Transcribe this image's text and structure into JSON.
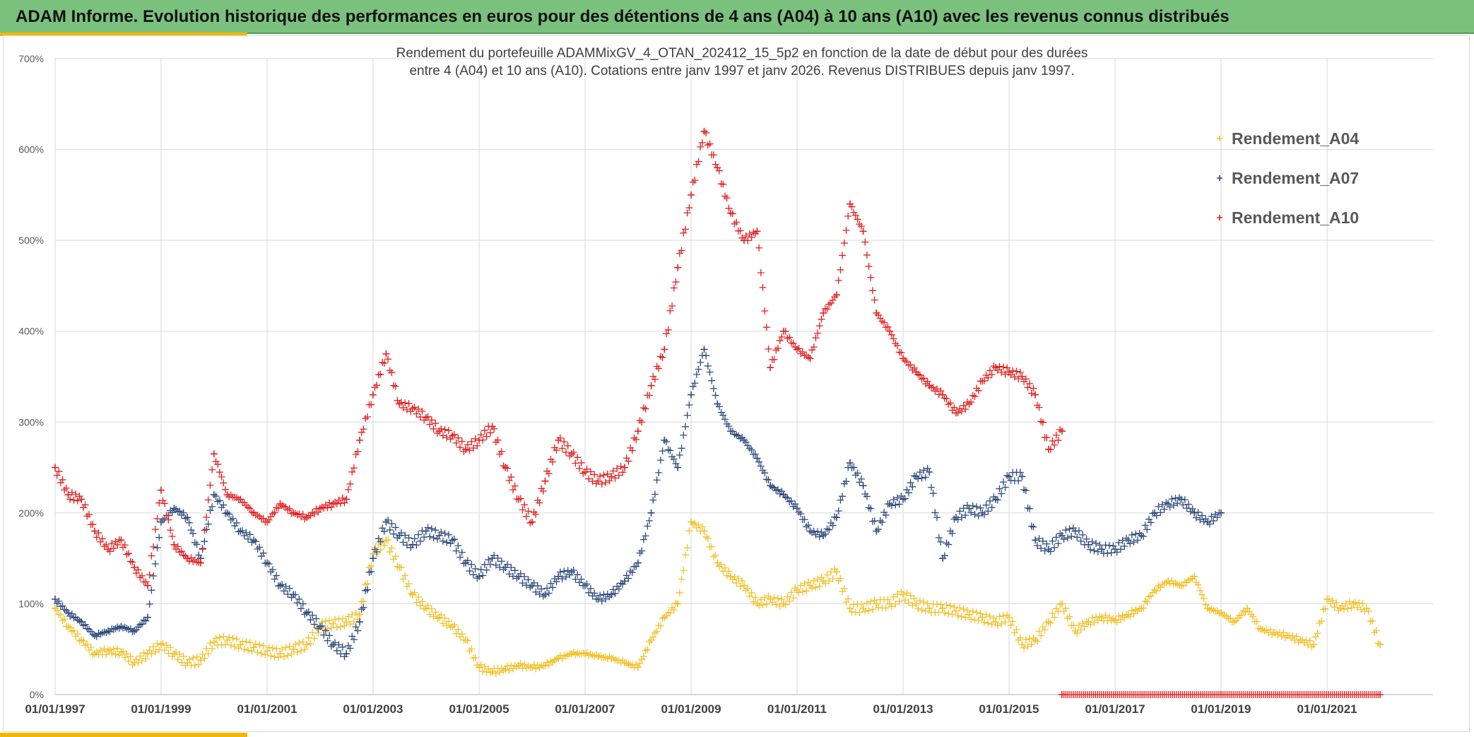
{
  "header": {
    "title": "ADAM Informe. Evolution historique des performances en euros pour des détentions de 4 ans (A04) à 10 ans (A10) avec les revenus connus distribués"
  },
  "chart_data": {
    "type": "scatter",
    "title": "",
    "subtitle_lines": [
      "Rendement du portefeuille ADAMMixGV_4_OTAN_202412_15_5p2  en fonction de la date de début pour des durées",
      "entre 4 (A04) et 10 ans (A10). Cotations entre janv 1997 et janv 2026. Revenus DISTRIBUES depuis janv 1997."
    ],
    "xlabel": "",
    "ylabel": "",
    "x_range": [
      "1997-01-01",
      "2023-01-01"
    ],
    "ylim": [
      0,
      700
    ],
    "y_ticks": [
      0,
      100,
      200,
      300,
      400,
      500,
      600,
      700
    ],
    "y_tick_labels": [
      "0%",
      "100%",
      "200%",
      "300%",
      "400%",
      "500%",
      "600%",
      "700%"
    ],
    "x_ticks": [
      "1997-01-01",
      "1999-01-01",
      "2001-01-01",
      "2003-01-01",
      "2005-01-01",
      "2007-01-01",
      "2009-01-01",
      "2011-01-01",
      "2013-01-01",
      "2015-01-01",
      "2017-01-01",
      "2019-01-01",
      "2021-01-01"
    ],
    "x_tick_labels": [
      "01/01/1997",
      "01/01/1999",
      "01/01/2001",
      "01/01/2003",
      "01/01/2005",
      "01/01/2007",
      "01/01/2009",
      "01/01/2011",
      "01/01/2013",
      "01/01/2015",
      "01/01/2017",
      "01/01/2019",
      "01/01/2021"
    ],
    "grid": true,
    "legend_position": "top-right",
    "marker": "+",
    "series": [
      {
        "name": "Rendement_A04",
        "color": "#f2c12e",
        "x": [
          "1997-01",
          "1997-04",
          "1997-07",
          "1997-10",
          "1998-01",
          "1998-04",
          "1998-07",
          "1998-10",
          "1999-01",
          "1999-04",
          "1999-07",
          "1999-10",
          "2000-01",
          "2000-04",
          "2000-07",
          "2000-10",
          "2001-01",
          "2001-04",
          "2001-07",
          "2001-10",
          "2002-01",
          "2002-04",
          "2002-07",
          "2002-10",
          "2003-01",
          "2003-04",
          "2003-07",
          "2003-10",
          "2004-01",
          "2004-04",
          "2004-07",
          "2004-10",
          "2005-01",
          "2005-04",
          "2005-07",
          "2005-10",
          "2006-01",
          "2006-04",
          "2006-07",
          "2006-10",
          "2007-01",
          "2007-04",
          "2007-07",
          "2007-10",
          "2008-01",
          "2008-04",
          "2008-07",
          "2008-10",
          "2009-01",
          "2009-04",
          "2009-07",
          "2009-10",
          "2010-01",
          "2010-04",
          "2010-07",
          "2010-10",
          "2011-01",
          "2011-04",
          "2011-07",
          "2011-10",
          "2012-01",
          "2012-04",
          "2012-07",
          "2012-10",
          "2013-01",
          "2013-04",
          "2013-07",
          "2013-10",
          "2014-01",
          "2014-04",
          "2014-07",
          "2014-10",
          "2015-01",
          "2015-04",
          "2015-07",
          "2015-10",
          "2016-01",
          "2016-04",
          "2016-07",
          "2016-10",
          "2017-01",
          "2017-04",
          "2017-07",
          "2017-10",
          "2018-01",
          "2018-04",
          "2018-07",
          "2018-10",
          "2019-01",
          "2019-04",
          "2019-07",
          "2019-10",
          "2020-01",
          "2020-04",
          "2020-07",
          "2020-10",
          "2021-01",
          "2021-04",
          "2021-07",
          "2021-10",
          "2022-01"
        ],
        "values": [
          95,
          75,
          60,
          45,
          48,
          47,
          35,
          45,
          55,
          45,
          35,
          38,
          58,
          60,
          55,
          52,
          48,
          45,
          50,
          55,
          75,
          78,
          80,
          88,
          155,
          170,
          140,
          110,
          95,
          85,
          75,
          60,
          30,
          25,
          28,
          32,
          30,
          32,
          40,
          45,
          45,
          42,
          40,
          35,
          30,
          60,
          85,
          100,
          190,
          180,
          145,
          130,
          120,
          100,
          105,
          100,
          115,
          120,
          125,
          135,
          95,
          95,
          100,
          100,
          110,
          100,
          95,
          95,
          92,
          88,
          85,
          80,
          85,
          55,
          60,
          80,
          100,
          70,
          80,
          85,
          82,
          88,
          95,
          115,
          125,
          120,
          130,
          95,
          90,
          80,
          95,
          72,
          68,
          65,
          60,
          55,
          105,
          95,
          100,
          95,
          55
        ]
      },
      {
        "name": "Rendement_A07",
        "color": "#2e4a7d",
        "x": [
          "1997-01",
          "1997-04",
          "1997-07",
          "1997-10",
          "1998-01",
          "1998-04",
          "1998-07",
          "1998-10",
          "1999-01",
          "1999-04",
          "1999-07",
          "1999-10",
          "2000-01",
          "2000-04",
          "2000-07",
          "2000-10",
          "2001-01",
          "2001-04",
          "2001-07",
          "2001-10",
          "2002-01",
          "2002-04",
          "2002-07",
          "2002-10",
          "2003-01",
          "2003-04",
          "2003-07",
          "2003-10",
          "2004-01",
          "2004-04",
          "2004-07",
          "2004-10",
          "2005-01",
          "2005-04",
          "2005-07",
          "2005-10",
          "2006-01",
          "2006-04",
          "2006-07",
          "2006-10",
          "2007-01",
          "2007-04",
          "2007-07",
          "2007-10",
          "2008-01",
          "2008-04",
          "2008-07",
          "2008-10",
          "2009-01",
          "2009-04",
          "2009-07",
          "2009-10",
          "2010-01",
          "2010-04",
          "2010-07",
          "2010-10",
          "2011-01",
          "2011-04",
          "2011-07",
          "2011-10",
          "2012-01",
          "2012-04",
          "2012-07",
          "2012-10",
          "2013-01",
          "2013-04",
          "2013-07",
          "2013-10",
          "2014-01",
          "2014-04",
          "2014-07",
          "2014-10",
          "2015-01",
          "2015-04",
          "2015-07",
          "2015-10",
          "2016-01",
          "2016-04",
          "2016-07",
          "2016-10",
          "2017-01",
          "2017-04",
          "2017-07",
          "2017-10",
          "2018-01",
          "2018-04",
          "2018-07",
          "2018-10",
          "2019-01"
        ],
        "values": [
          105,
          90,
          80,
          65,
          70,
          75,
          70,
          85,
          190,
          205,
          195,
          150,
          220,
          200,
          180,
          170,
          145,
          120,
          110,
          90,
          75,
          55,
          45,
          80,
          150,
          190,
          175,
          165,
          180,
          175,
          170,
          145,
          130,
          150,
          140,
          130,
          120,
          110,
          130,
          135,
          120,
          105,
          110,
          125,
          145,
          200,
          280,
          250,
          330,
          380,
          320,
          290,
          280,
          260,
          230,
          220,
          205,
          180,
          175,
          195,
          255,
          230,
          180,
          210,
          215,
          240,
          245,
          150,
          195,
          205,
          200,
          215,
          240,
          240,
          170,
          160,
          175,
          180,
          165,
          160,
          160,
          170,
          175,
          200,
          210,
          215,
          200,
          190,
          200
        ]
      },
      {
        "name": "Rendement_A10",
        "color": "#e02020",
        "x": [
          "1997-01",
          "1997-04",
          "1997-07",
          "1997-10",
          "1998-01",
          "1998-04",
          "1998-07",
          "1998-10",
          "1999-01",
          "1999-04",
          "1999-07",
          "1999-10",
          "2000-01",
          "2000-04",
          "2000-07",
          "2000-10",
          "2001-01",
          "2001-04",
          "2001-07",
          "2001-10",
          "2002-01",
          "2002-04",
          "2002-07",
          "2002-10",
          "2003-01",
          "2003-04",
          "2003-07",
          "2003-10",
          "2004-01",
          "2004-04",
          "2004-07",
          "2004-10",
          "2005-01",
          "2005-04",
          "2005-07",
          "2005-10",
          "2006-01",
          "2006-04",
          "2006-07",
          "2006-10",
          "2007-01",
          "2007-04",
          "2007-07",
          "2007-10",
          "2008-01",
          "2008-04",
          "2008-07",
          "2008-10",
          "2009-01",
          "2009-04",
          "2009-07",
          "2009-10",
          "2010-01",
          "2010-04",
          "2010-07",
          "2010-10",
          "2011-01",
          "2011-04",
          "2011-07",
          "2011-10",
          "2012-01",
          "2012-04",
          "2012-07",
          "2012-10",
          "2013-01",
          "2013-04",
          "2013-07",
          "2013-10",
          "2014-01",
          "2014-04",
          "2014-07",
          "2014-10",
          "2015-01",
          "2015-04",
          "2015-07",
          "2015-10",
          "2016-01"
        ],
        "values": [
          250,
          220,
          215,
          180,
          160,
          170,
          140,
          120,
          225,
          165,
          150,
          145,
          265,
          220,
          215,
          200,
          190,
          210,
          200,
          195,
          205,
          210,
          215,
          280,
          330,
          375,
          320,
          315,
          305,
          290,
          285,
          270,
          280,
          295,
          250,
          215,
          190,
          235,
          280,
          265,
          245,
          235,
          240,
          250,
          290,
          340,
          380,
          470,
          550,
          620,
          580,
          530,
          500,
          510,
          360,
          400,
          380,
          370,
          420,
          440,
          540,
          510,
          420,
          400,
          370,
          355,
          340,
          330,
          310,
          320,
          345,
          360,
          355,
          350,
          330,
          270,
          290
        ]
      },
      {
        "name": "",
        "color": "#e02020",
        "x": [
          "2016-01",
          "2022-01"
        ],
        "values": [
          0,
          0
        ]
      }
    ]
  }
}
